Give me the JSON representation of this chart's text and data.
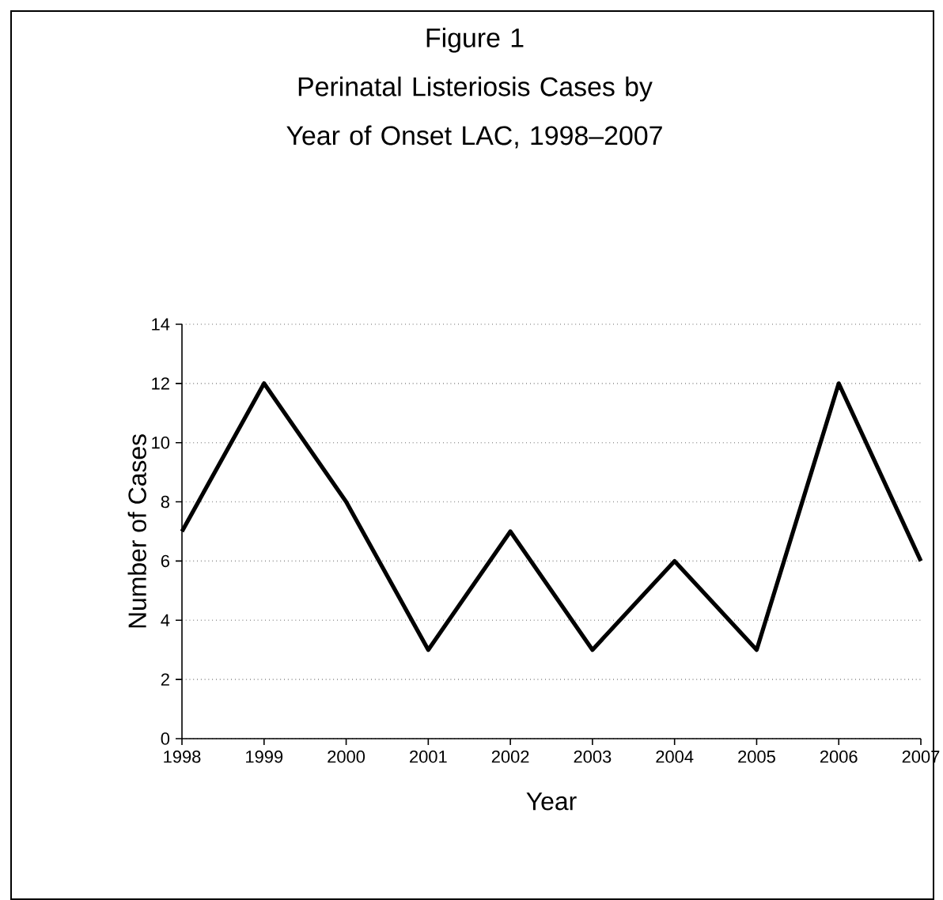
{
  "chart_data": {
    "type": "line",
    "title": "Figure 1",
    "subtitle": "Perinatal Listeriosis Cases by Year of Onset LAC, 1998–2007",
    "xlabel": "Year",
    "ylabel": "Number of Cases",
    "categories": [
      "1998",
      "1999",
      "2000",
      "2001",
      "2002",
      "2003",
      "2004",
      "2005",
      "2006",
      "2007"
    ],
    "series": [
      {
        "color": "#000000",
        "values": [
          7,
          12,
          8,
          3,
          7,
          3,
          6,
          3,
          12,
          6
        ]
      }
    ],
    "ylim": [
      0,
      14
    ],
    "yticks": [
      0,
      2,
      4,
      6,
      8,
      10,
      12,
      14
    ],
    "grid": "y",
    "marker": "none",
    "line_style": "solid"
  }
}
